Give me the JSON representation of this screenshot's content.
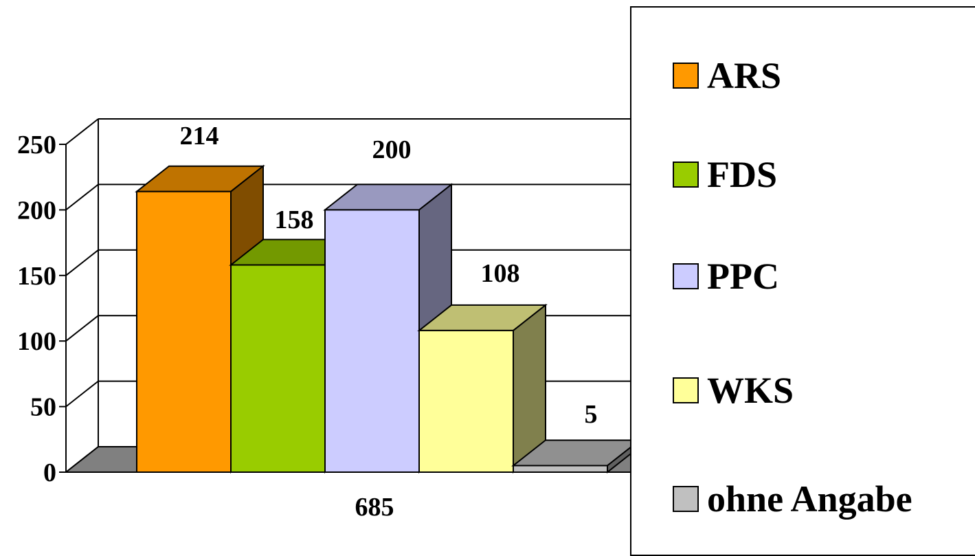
{
  "chart_data": {
    "type": "bar",
    "three_d": true,
    "categories": [
      "685"
    ],
    "series": [
      {
        "name": "ARS",
        "values": [
          214
        ],
        "color": "#FF9900"
      },
      {
        "name": "FDS",
        "values": [
          158
        ],
        "color": "#99CC00"
      },
      {
        "name": "PPC",
        "values": [
          200
        ],
        "color": "#CCCCFF"
      },
      {
        "name": "WKS",
        "values": [
          108
        ],
        "color": "#FFFF99"
      },
      {
        "name": "ohne Angabe",
        "values": [
          5
        ],
        "color": "#C0C0C0"
      }
    ],
    "data_labels": [
      "214",
      "158",
      "200",
      "108",
      "5"
    ],
    "y_ticks": [
      "0",
      "50",
      "100",
      "150",
      "200",
      "250"
    ],
    "ylim": [
      0,
      250
    ],
    "grid": true,
    "legend_position": "right",
    "floor_color": "#808080"
  }
}
